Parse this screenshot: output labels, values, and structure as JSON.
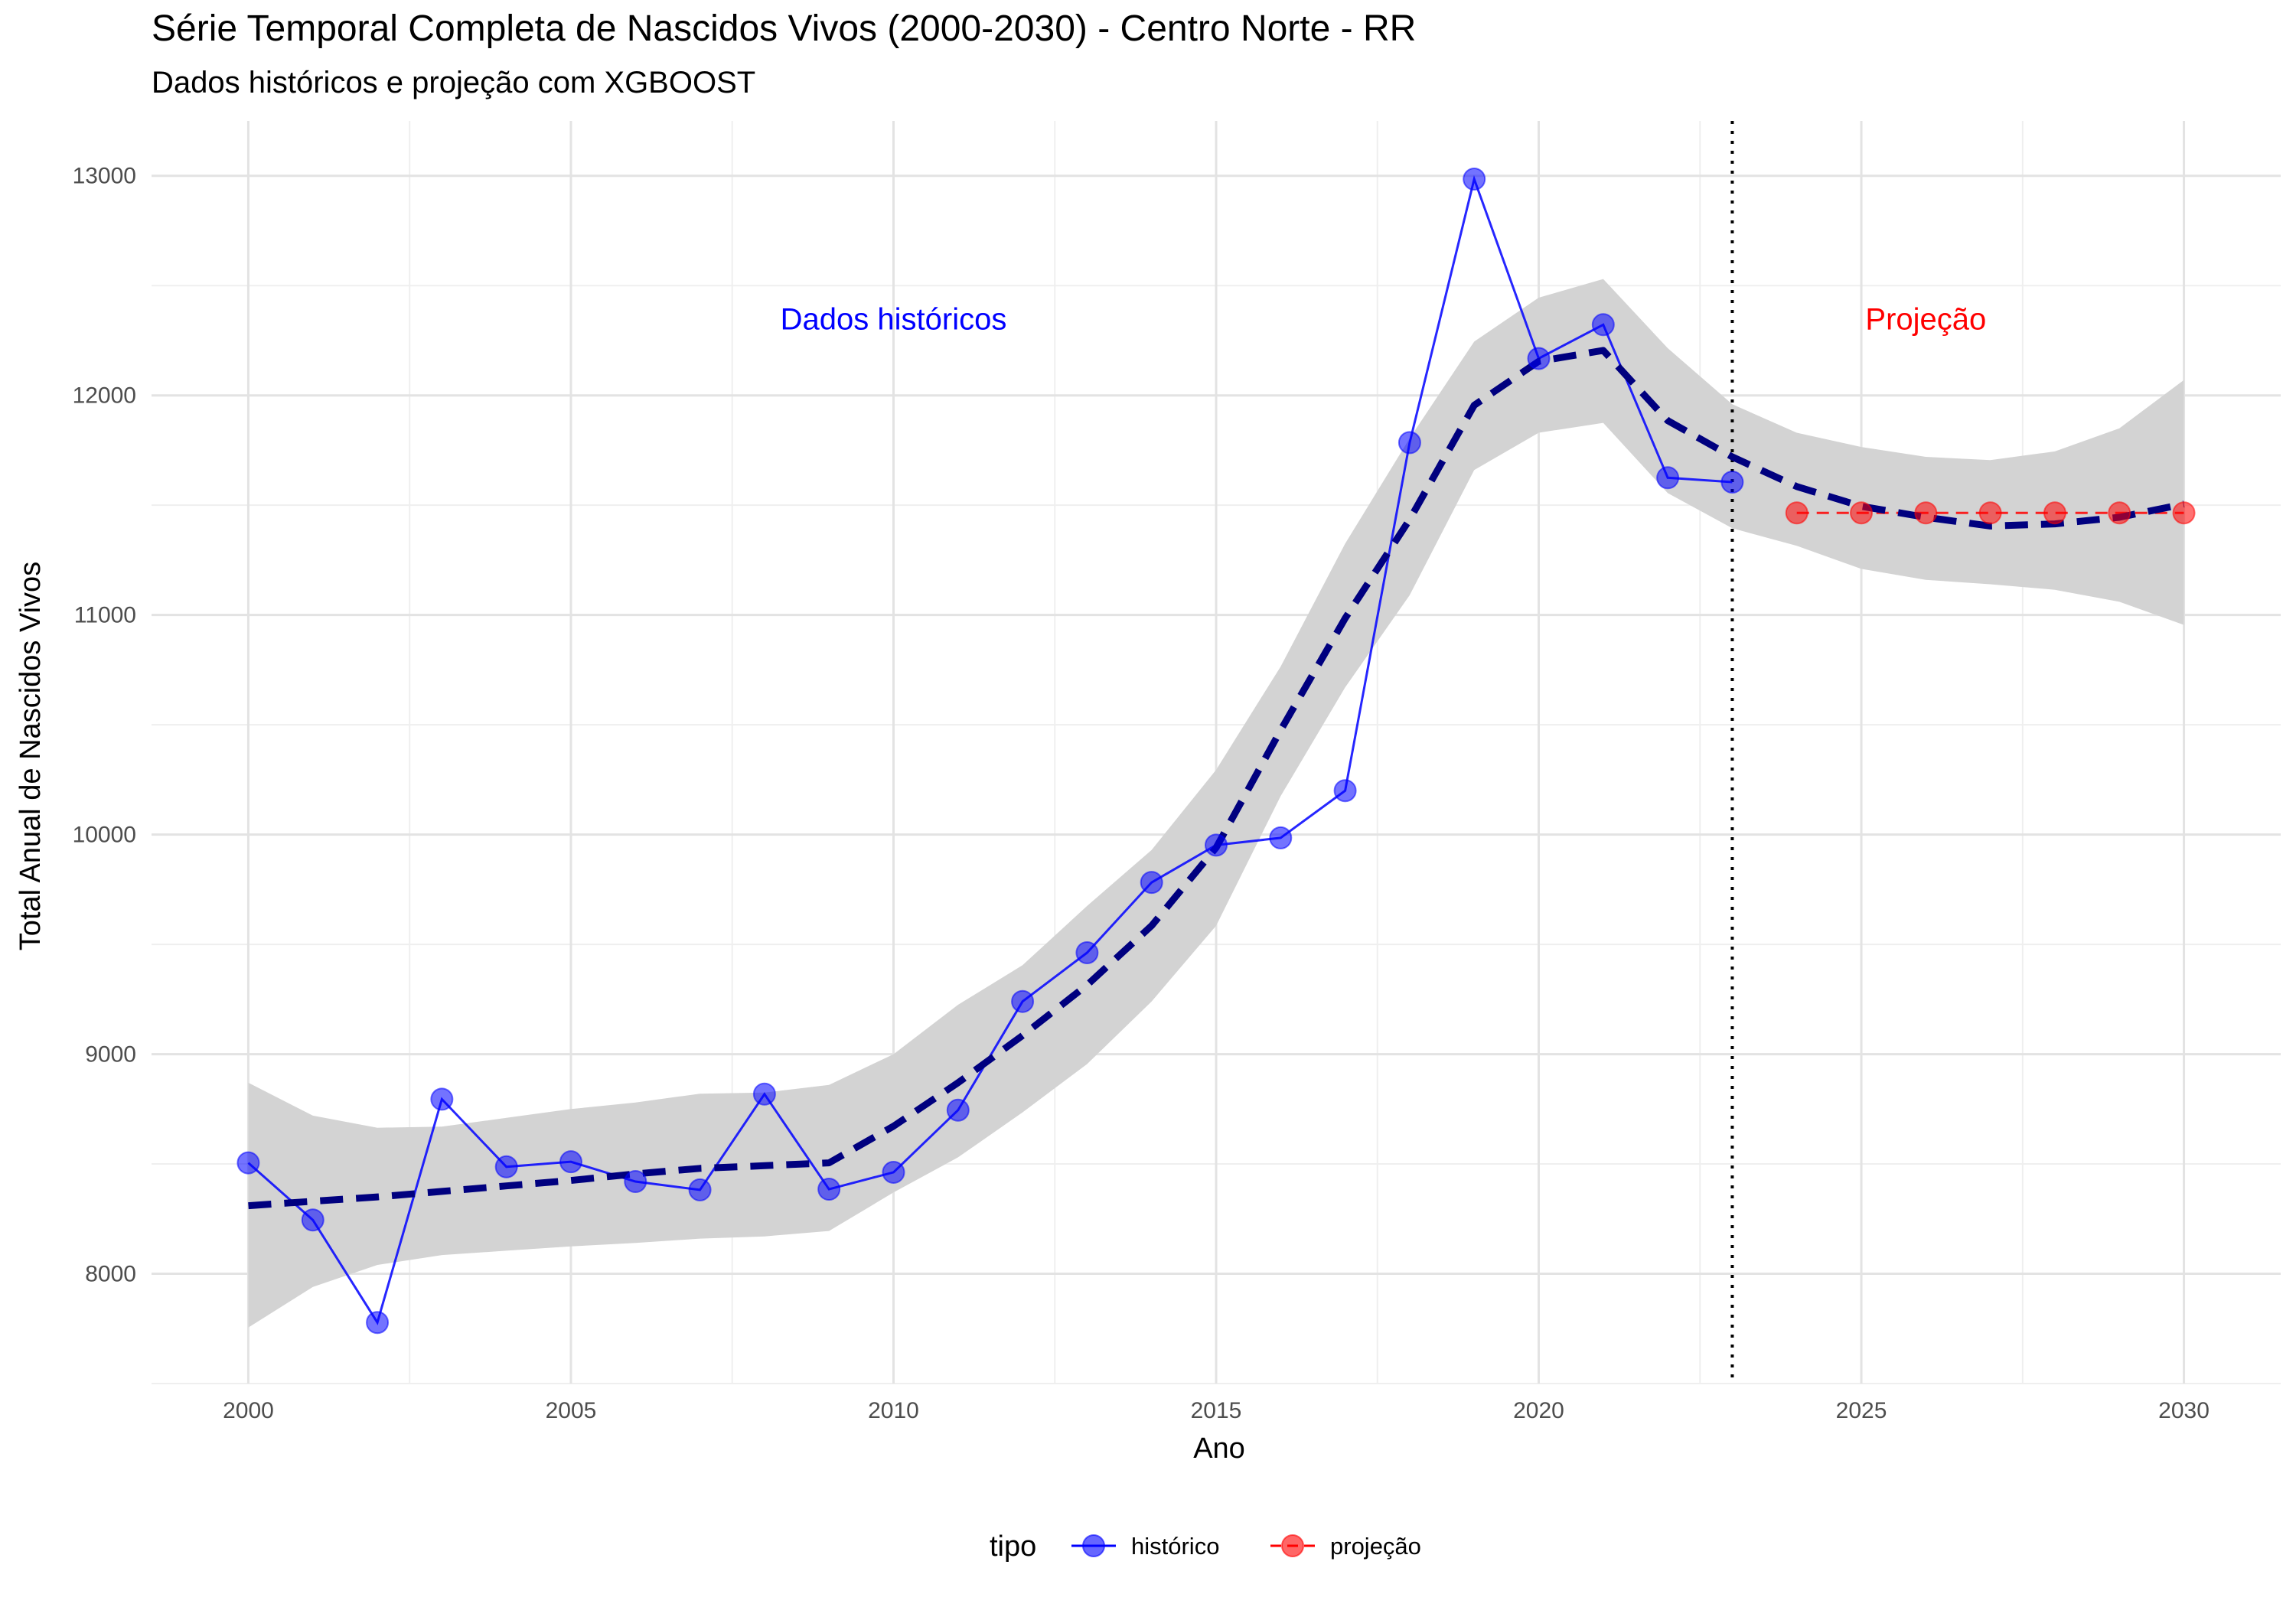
{
  "chart_data": {
    "type": "line",
    "title": "Série Temporal Completa de Nascidos Vivos (2000-2030) -  Centro Norte - RR",
    "subtitle": "Dados históricos e projeção com XGBOOST",
    "xlabel": "Ano",
    "ylabel": "Total Anual de Nascidos Vivos",
    "xlim": [
      1998.5,
      2031.5
    ],
    "ylim": [
      7500,
      13250
    ],
    "x_ticks": [
      2000,
      2005,
      2010,
      2015,
      2020,
      2025,
      2030
    ],
    "y_ticks": [
      8000,
      9000,
      10000,
      11000,
      12000,
      13000
    ],
    "grid": true,
    "legend_title": "tipo",
    "legend_position": "bottom",
    "series": [
      {
        "name": "histórico",
        "color": "#0000FF",
        "x": [
          2000,
          2001,
          2002,
          2003,
          2004,
          2005,
          2006,
          2007,
          2008,
          2009,
          2010,
          2011,
          2012,
          2013,
          2014,
          2015,
          2016,
          2017,
          2018,
          2019,
          2020,
          2021,
          2022,
          2023
        ],
        "values": [
          8505,
          8245,
          7778,
          8795,
          8487,
          8510,
          8420,
          8382,
          8818,
          8385,
          8462,
          8745,
          9240,
          9462,
          9782,
          9952,
          9985,
          10200,
          11785,
          12985,
          12168,
          12322,
          11625,
          11605
        ]
      },
      {
        "name": "projeção",
        "color": "#FF0000",
        "x": [
          2024,
          2025,
          2026,
          2027,
          2028,
          2029,
          2030
        ],
        "values": [
          11465,
          11465,
          11465,
          11465,
          11465,
          11465,
          11465
        ]
      }
    ],
    "trend": {
      "style": "dashed",
      "color": "#00007F",
      "x": [
        2000,
        2001,
        2002,
        2003,
        2004,
        2005,
        2006,
        2007,
        2008,
        2009,
        2010,
        2011,
        2012,
        2013,
        2014,
        2015,
        2016,
        2017,
        2018,
        2019,
        2020,
        2021,
        2022,
        2023,
        2024,
        2025,
        2026,
        2027,
        2028,
        2029,
        2030
      ],
      "values": [
        8310,
        8330,
        8350,
        8375,
        8400,
        8425,
        8455,
        8480,
        8492,
        8505,
        8672,
        8870,
        9085,
        9315,
        9585,
        9940,
        10475,
        10985,
        11435,
        11955,
        12155,
        12205,
        11885,
        11720,
        11585,
        11495,
        11445,
        11405,
        11415,
        11445,
        11505
      ],
      "ci_upper": [
        8870,
        8720,
        8665,
        8670,
        8710,
        8750,
        8780,
        8820,
        8825,
        8860,
        9000,
        9225,
        9405,
        9675,
        9930,
        10295,
        10765,
        11325,
        11805,
        12245,
        12445,
        12530,
        12215,
        11960,
        11830,
        11765,
        11720,
        11705,
        11745,
        11850,
        12070
      ],
      "ci_lower": [
        7755,
        7940,
        8040,
        8085,
        8105,
        8125,
        8140,
        8160,
        8170,
        8195,
        8370,
        8530,
        8735,
        8955,
        9240,
        9585,
        10175,
        10670,
        11090,
        11660,
        11830,
        11875,
        11555,
        11395,
        11315,
        11210,
        11160,
        11140,
        11115,
        11060,
        10955
      ],
      "ci_color": "#D3D3D3"
    },
    "vline": {
      "x": 2023,
      "style": "dotted"
    },
    "annotations": [
      {
        "text": "Dados históricos",
        "x": 2010,
        "y": 12300,
        "color": "#0000FF"
      },
      {
        "text": "Projeção",
        "x": 2026,
        "y": 12300,
        "color": "#FF0000"
      }
    ]
  }
}
